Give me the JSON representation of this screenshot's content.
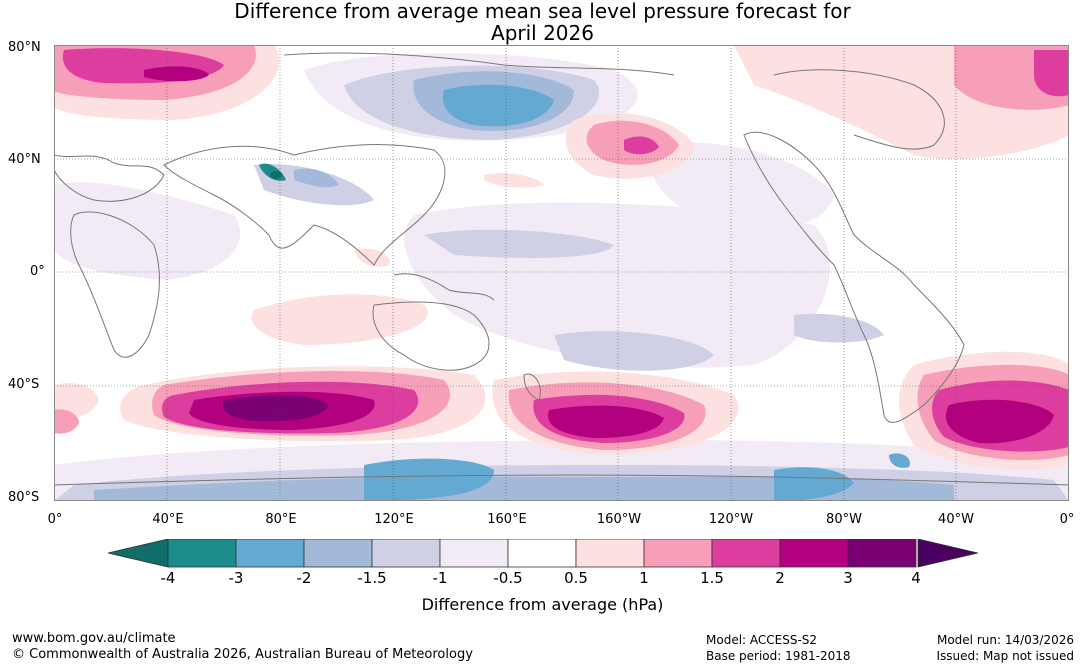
{
  "title_line1": "Difference from average mean sea level pressure forecast for",
  "title_line2": "April 2026",
  "lat_labels": [
    "80°N",
    "40°N",
    "0°",
    "40°S",
    "80°S"
  ],
  "lon_labels": [
    "0°",
    "40°E",
    "80°E",
    "120°E",
    "160°E",
    "160°W",
    "120°W",
    "80°W",
    "40°W",
    "0°"
  ],
  "colorbar": {
    "ticks": [
      "-4",
      "-3",
      "-2",
      "-1.5",
      "-1",
      "-0.5",
      "0.5",
      "1",
      "1.5",
      "2",
      "3",
      "4"
    ],
    "colors": [
      "#1a8c8c",
      "#64a9d2",
      "#a3b9da",
      "#cfd0e5",
      "#f2ebf5",
      "#ffffff",
      "#fde0e0",
      "#f79fb8",
      "#dd3d9f",
      "#b3007e",
      "#7a0173"
    ],
    "low_extend_color": "#0f6e68",
    "high_extend_color": "#4a0060",
    "label": "Difference from average (hPa)"
  },
  "footer": {
    "left_line1": "www.bom.gov.au/climate",
    "left_line2": "© Commonwealth of Australia 2026, Australian Bureau of Meteorology",
    "mid_line1": "Model: ACCESS-S2",
    "mid_line2": "Base period: 1981-2018",
    "right_line1": "Model run: 14/03/2026",
    "right_line2": "Issued: Map not issued"
  }
}
